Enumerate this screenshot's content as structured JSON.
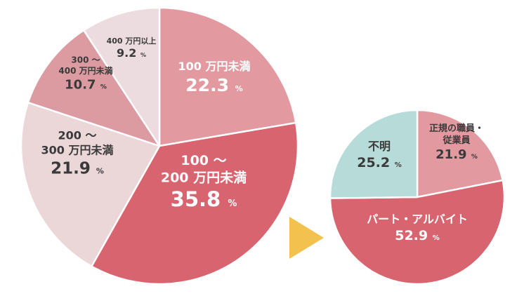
{
  "chart_data": [
    {
      "type": "pie",
      "slices": [
        {
          "line1": "100 万円未満",
          "line2": "",
          "value": 22.3,
          "unit": "%",
          "color": "#e29aa0",
          "text": "light"
        },
        {
          "line1": "100 〜",
          "line2": "200 万円未満",
          "value": 35.8,
          "unit": "%",
          "color": "#d8646f",
          "text": "light"
        },
        {
          "line1": "200 〜",
          "line2": "300 万円未満",
          "value": 21.9,
          "unit": "%",
          "color": "#ebd6d8",
          "text": "dark"
        },
        {
          "line1": "300 〜",
          "line2": "400 万円未満",
          "value": 10.7,
          "unit": "%",
          "color": "#dc9aa1",
          "text": "dark"
        },
        {
          "line1": "400 万円以上",
          "line2": "",
          "value": 9.2,
          "unit": "%",
          "color": "#eddcdf",
          "text": "dark"
        }
      ]
    },
    {
      "type": "pie",
      "slices": [
        {
          "line1": "正規の職員・",
          "line2": "従業員",
          "value": 21.9,
          "unit": "%",
          "color": "#e29aa0",
          "text": "dark"
        },
        {
          "line1": "パート・アルバイト",
          "line2": "",
          "value": 52.9,
          "unit": "%",
          "color": "#d8646f",
          "text": "light"
        },
        {
          "line1": "不明",
          "line2": "",
          "value": 25.2,
          "unit": "%",
          "color": "#b7dbd8",
          "text": "dark"
        }
      ]
    }
  ],
  "arrow_color": "#f2c14e"
}
